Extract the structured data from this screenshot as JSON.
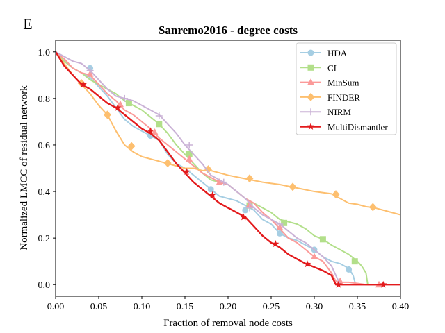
{
  "panel_label": "E",
  "chart_data": {
    "type": "line",
    "title": "Sanremo2016 - degree costs",
    "xlabel": "Fraction of removal node costs",
    "ylabel": "Normalized LMCC of residual network",
    "xlim": [
      0.0,
      0.4
    ],
    "ylim": [
      -0.05,
      1.05
    ],
    "x_ticks": [
      0.0,
      0.05,
      0.1,
      0.15,
      0.2,
      0.25,
      0.3,
      0.35,
      0.4
    ],
    "x_tick_labels": [
      "0.00",
      "0.05",
      "0.10",
      "0.15",
      "0.20",
      "0.25",
      "0.30",
      "0.35",
      "0.40"
    ],
    "y_ticks": [
      0.0,
      0.2,
      0.4,
      0.6,
      0.8,
      1.0
    ],
    "y_tick_labels": [
      "0.0",
      "0.2",
      "0.4",
      "0.6",
      "0.8",
      "1.0"
    ],
    "grid": false,
    "legend_position": "top-right",
    "series": [
      {
        "name": "HDA",
        "color": "#a6cee3",
        "marker": "circle",
        "x": [
          0.0,
          0.01,
          0.02,
          0.03,
          0.04,
          0.05,
          0.06,
          0.07,
          0.08,
          0.09,
          0.1,
          0.11,
          0.12,
          0.13,
          0.14,
          0.15,
          0.16,
          0.17,
          0.18,
          0.19,
          0.2,
          0.21,
          0.22,
          0.23,
          0.24,
          0.25,
          0.26,
          0.27,
          0.28,
          0.29,
          0.3,
          0.31,
          0.32,
          0.33,
          0.34,
          0.345,
          0.348,
          0.35,
          0.37,
          0.38
        ],
        "y": [
          1.0,
          0.96,
          0.93,
          0.91,
          0.89,
          0.85,
          0.81,
          0.76,
          0.71,
          0.68,
          0.66,
          0.64,
          0.62,
          0.56,
          0.52,
          0.5,
          0.47,
          0.44,
          0.41,
          0.38,
          0.37,
          0.36,
          0.34,
          0.32,
          0.28,
          0.26,
          0.22,
          0.2,
          0.19,
          0.17,
          0.15,
          0.12,
          0.1,
          0.09,
          0.07,
          0.04,
          0.0,
          0.0,
          0.0,
          0.0
        ],
        "marker_x": [
          0.04,
          0.11,
          0.18,
          0.22,
          0.26,
          0.3,
          0.34
        ],
        "marker_y": [
          0.93,
          0.64,
          0.41,
          0.32,
          0.22,
          0.15,
          0.065
        ]
      },
      {
        "name": "CI",
        "color": "#b2df8a",
        "marker": "square",
        "x": [
          0.0,
          0.01,
          0.02,
          0.03,
          0.04,
          0.05,
          0.06,
          0.07,
          0.08,
          0.09,
          0.1,
          0.11,
          0.12,
          0.13,
          0.14,
          0.15,
          0.16,
          0.17,
          0.18,
          0.19,
          0.2,
          0.21,
          0.22,
          0.23,
          0.24,
          0.25,
          0.26,
          0.27,
          0.28,
          0.29,
          0.3,
          0.31,
          0.32,
          0.33,
          0.34,
          0.35,
          0.355,
          0.36,
          0.362,
          0.37,
          0.38
        ],
        "y": [
          1.0,
          0.96,
          0.93,
          0.91,
          0.88,
          0.86,
          0.84,
          0.82,
          0.79,
          0.77,
          0.75,
          0.72,
          0.69,
          0.65,
          0.6,
          0.56,
          0.52,
          0.48,
          0.45,
          0.44,
          0.43,
          0.4,
          0.37,
          0.35,
          0.33,
          0.31,
          0.28,
          0.27,
          0.26,
          0.24,
          0.21,
          0.195,
          0.17,
          0.15,
          0.13,
          0.1,
          0.08,
          0.05,
          0.0,
          0.0,
          0.0
        ],
        "marker_x": [
          0.085,
          0.12,
          0.155,
          0.225,
          0.265,
          0.31,
          0.347
        ],
        "marker_y": [
          0.78,
          0.69,
          0.56,
          0.34,
          0.265,
          0.195,
          0.1
        ]
      },
      {
        "name": "MinSum",
        "color": "#fb9a99",
        "marker": "triangle",
        "x": [
          0.0,
          0.01,
          0.02,
          0.03,
          0.04,
          0.05,
          0.06,
          0.07,
          0.08,
          0.09,
          0.1,
          0.11,
          0.12,
          0.13,
          0.14,
          0.15,
          0.16,
          0.17,
          0.18,
          0.19,
          0.2,
          0.21,
          0.22,
          0.23,
          0.24,
          0.25,
          0.26,
          0.27,
          0.28,
          0.29,
          0.3,
          0.31,
          0.32,
          0.325,
          0.33,
          0.34,
          0.35,
          0.36,
          0.37,
          0.38
        ],
        "y": [
          1.0,
          0.97,
          0.93,
          0.91,
          0.9,
          0.86,
          0.82,
          0.79,
          0.75,
          0.73,
          0.7,
          0.67,
          0.63,
          0.6,
          0.57,
          0.54,
          0.51,
          0.48,
          0.46,
          0.44,
          0.43,
          0.4,
          0.37,
          0.35,
          0.31,
          0.28,
          0.24,
          0.2,
          0.18,
          0.15,
          0.12,
          0.1,
          0.05,
          0.015,
          0.01,
          0.01,
          0.005,
          0.0,
          0.0,
          0.0
        ],
        "marker_x": [
          0.04,
          0.075,
          0.115,
          0.155,
          0.19,
          0.225,
          0.26,
          0.3,
          0.33,
          0.375
        ],
        "marker_y": [
          0.905,
          0.775,
          0.655,
          0.54,
          0.44,
          0.345,
          0.245,
          0.12,
          0.015,
          0.0
        ]
      },
      {
        "name": "FINDER",
        "color": "#fdbf6f",
        "marker": "diamond",
        "x": [
          0.0,
          0.01,
          0.02,
          0.03,
          0.04,
          0.05,
          0.06,
          0.07,
          0.08,
          0.09,
          0.1,
          0.11,
          0.12,
          0.13,
          0.14,
          0.15,
          0.16,
          0.17,
          0.18,
          0.2,
          0.22,
          0.24,
          0.26,
          0.28,
          0.3,
          0.32,
          0.33,
          0.34,
          0.35,
          0.36,
          0.37,
          0.38,
          0.39,
          0.4
        ],
        "y": [
          1.0,
          0.95,
          0.9,
          0.86,
          0.82,
          0.77,
          0.73,
          0.66,
          0.6,
          0.57,
          0.55,
          0.54,
          0.53,
          0.52,
          0.51,
          0.5,
          0.5,
          0.49,
          0.49,
          0.47,
          0.455,
          0.44,
          0.43,
          0.415,
          0.4,
          0.39,
          0.37,
          0.35,
          0.345,
          0.335,
          0.33,
          0.32,
          0.31,
          0.3
        ],
        "marker_x": [
          0.03,
          0.06,
          0.088,
          0.13,
          0.177,
          0.225,
          0.275,
          0.325,
          0.368
        ],
        "marker_y": [
          0.865,
          0.73,
          0.595,
          0.522,
          0.495,
          0.456,
          0.42,
          0.388,
          0.333
        ]
      },
      {
        "name": "NIRM",
        "color": "#cab2d6",
        "marker": "plus",
        "x": [
          0.0,
          0.01,
          0.02,
          0.03,
          0.04,
          0.05,
          0.06,
          0.07,
          0.08,
          0.09,
          0.1,
          0.11,
          0.12,
          0.13,
          0.14,
          0.15,
          0.16,
          0.17,
          0.18,
          0.19,
          0.2,
          0.21,
          0.22,
          0.23,
          0.24,
          0.25,
          0.26,
          0.27,
          0.28,
          0.29,
          0.3,
          0.31,
          0.32,
          0.325,
          0.33,
          0.35
        ],
        "y": [
          1.0,
          0.98,
          0.96,
          0.95,
          0.92,
          0.88,
          0.84,
          0.81,
          0.8,
          0.79,
          0.77,
          0.75,
          0.73,
          0.69,
          0.65,
          0.6,
          0.56,
          0.52,
          0.47,
          0.45,
          0.43,
          0.4,
          0.37,
          0.33,
          0.3,
          0.28,
          0.26,
          0.23,
          0.2,
          0.18,
          0.15,
          0.12,
          0.08,
          0.04,
          0.0,
          0.0
        ],
        "marker_x": [
          0.04,
          0.08,
          0.12,
          0.155,
          0.195,
          0.225,
          0.26
        ],
        "marker_y": [
          0.92,
          0.8,
          0.725,
          0.6,
          0.44,
          0.33,
          0.26
        ]
      },
      {
        "name": "MultiDismantler",
        "color": "#e31a1c",
        "marker": "star",
        "x": [
          0.0,
          0.01,
          0.02,
          0.03,
          0.04,
          0.05,
          0.06,
          0.07,
          0.08,
          0.09,
          0.1,
          0.11,
          0.12,
          0.13,
          0.14,
          0.15,
          0.16,
          0.17,
          0.18,
          0.19,
          0.2,
          0.21,
          0.22,
          0.23,
          0.24,
          0.25,
          0.26,
          0.27,
          0.28,
          0.29,
          0.3,
          0.31,
          0.32,
          0.325,
          0.33,
          0.35,
          0.37,
          0.4
        ],
        "y": [
          1.0,
          0.94,
          0.9,
          0.86,
          0.84,
          0.81,
          0.78,
          0.76,
          0.73,
          0.7,
          0.67,
          0.65,
          0.62,
          0.57,
          0.52,
          0.48,
          0.44,
          0.41,
          0.38,
          0.35,
          0.33,
          0.31,
          0.29,
          0.25,
          0.21,
          0.18,
          0.16,
          0.13,
          0.11,
          0.09,
          0.075,
          0.06,
          0.04,
          0.0,
          0.0,
          0.0,
          0.0,
          0.0
        ],
        "marker_x": [
          0.032,
          0.072,
          0.11,
          0.152,
          0.182,
          0.218,
          0.255,
          0.292,
          0.328,
          0.38
        ],
        "marker_y": [
          0.86,
          0.76,
          0.66,
          0.485,
          0.385,
          0.29,
          0.175,
          0.088,
          0.0,
          0.0
        ]
      }
    ]
  }
}
